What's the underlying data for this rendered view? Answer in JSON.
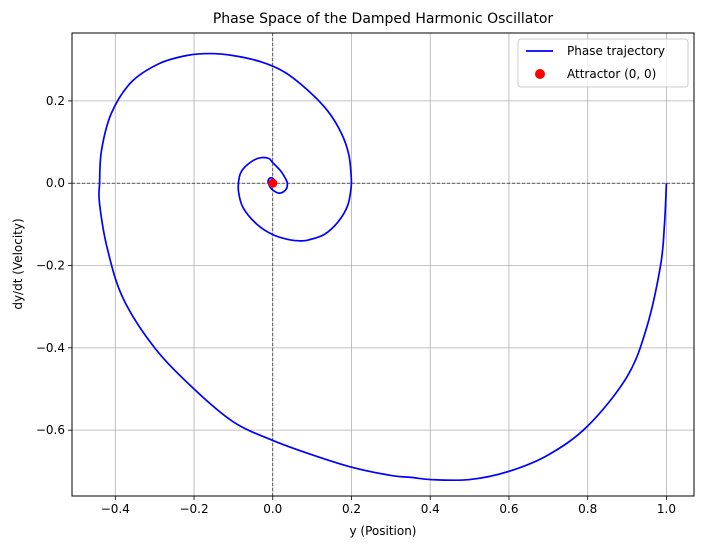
{
  "chart_data": {
    "type": "line",
    "title": "Phase Space of the Damped Harmonic Oscillator",
    "xlabel": "y (Position)",
    "ylabel": "dy/dt (Velocity)",
    "xlim": [
      -0.51,
      1.07
    ],
    "ylim": [
      -0.76,
      0.365
    ],
    "xticks": [
      -0.4,
      -0.2,
      0.0,
      0.2,
      0.4,
      0.6,
      0.8,
      1.0
    ],
    "xtick_labels": [
      "−0.4",
      "−0.2",
      "0.0",
      "0.2",
      "0.4",
      "0.6",
      "0.8",
      "1.0"
    ],
    "yticks": [
      -0.6,
      -0.4,
      -0.2,
      0.0,
      0.2
    ],
    "ytick_labels": [
      "−0.6",
      "−0.4",
      "−0.2",
      "0.0",
      "0.2"
    ],
    "grid": true,
    "reference_lines": {
      "x": 0,
      "y": 0
    },
    "legend_position": "top-right",
    "series": [
      {
        "name": "Phase trajectory",
        "kind": "line",
        "color": "#0000ff",
        "points": [
          [
            1.0,
            0.0
          ],
          [
            0.995,
            -0.1
          ],
          [
            0.985,
            -0.2
          ],
          [
            0.95,
            -0.35
          ],
          [
            0.9,
            -0.47
          ],
          [
            0.8,
            -0.59
          ],
          [
            0.7,
            -0.66
          ],
          [
            0.6,
            -0.7
          ],
          [
            0.5,
            -0.72
          ],
          [
            0.4,
            -0.72
          ],
          [
            0.355,
            -0.715
          ],
          [
            0.3,
            -0.71
          ],
          [
            0.2,
            -0.69
          ],
          [
            0.1,
            -0.66
          ],
          [
            0.0,
            -0.625
          ],
          [
            -0.1,
            -0.58
          ],
          [
            -0.2,
            -0.5
          ],
          [
            -0.3,
            -0.4
          ],
          [
            -0.38,
            -0.28
          ],
          [
            -0.42,
            -0.16
          ],
          [
            -0.44,
            -0.05
          ],
          [
            -0.44,
            0.0
          ],
          [
            -0.435,
            0.08
          ],
          [
            -0.41,
            0.17
          ],
          [
            -0.36,
            0.245
          ],
          [
            -0.29,
            0.29
          ],
          [
            -0.22,
            0.31
          ],
          [
            -0.16,
            0.315
          ],
          [
            -0.1,
            0.31
          ],
          [
            -0.03,
            0.295
          ],
          [
            0.03,
            0.27
          ],
          [
            0.09,
            0.225
          ],
          [
            0.14,
            0.175
          ],
          [
            0.175,
            0.12
          ],
          [
            0.193,
            0.07
          ],
          [
            0.199,
            0.02
          ],
          [
            0.199,
            -0.01
          ],
          [
            0.19,
            -0.055
          ],
          [
            0.165,
            -0.095
          ],
          [
            0.13,
            -0.125
          ],
          [
            0.09,
            -0.138
          ],
          [
            0.07,
            -0.14
          ],
          [
            0.04,
            -0.137
          ],
          [
            0.0,
            -0.125
          ],
          [
            -0.04,
            -0.1
          ],
          [
            -0.075,
            -0.06
          ],
          [
            -0.087,
            -0.02
          ],
          [
            -0.085,
            0.015
          ],
          [
            -0.075,
            0.035
          ],
          [
            -0.05,
            0.055
          ],
          [
            -0.03,
            0.062
          ],
          [
            -0.01,
            0.06
          ],
          [
            0.0,
            0.05
          ],
          [
            0.02,
            0.03
          ],
          [
            0.033,
            0.01
          ],
          [
            0.037,
            0.0
          ],
          [
            0.035,
            -0.013
          ],
          [
            0.025,
            -0.022
          ],
          [
            0.015,
            -0.024
          ],
          [
            0.005,
            -0.02
          ],
          [
            -0.005,
            -0.012
          ],
          [
            -0.01,
            -0.003
          ],
          [
            -0.012,
            0.005
          ],
          [
            -0.01,
            0.01
          ],
          [
            -0.006,
            0.013
          ],
          [
            0.0,
            0.012
          ],
          [
            0.004,
            0.008
          ],
          [
            0.006,
            0.003
          ],
          [
            0.006,
            -0.002
          ],
          [
            0.004,
            -0.005
          ],
          [
            0.001,
            -0.005
          ],
          [
            -0.002,
            -0.003
          ],
          [
            -0.003,
            0.0
          ],
          [
            -0.002,
            0.002
          ],
          [
            0.0,
            0.002
          ],
          [
            0.001,
            0.001
          ],
          [
            0.0,
            0.0
          ]
        ]
      },
      {
        "name": "Attractor (0, 0)",
        "kind": "scatter",
        "color": "#ff0000",
        "points": [
          [
            0,
            0
          ]
        ]
      }
    ]
  }
}
